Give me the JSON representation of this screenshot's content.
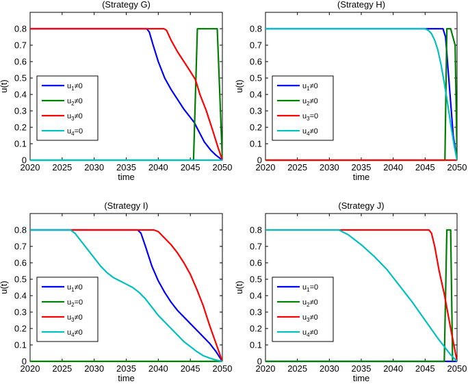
{
  "chart_data": [
    {
      "type": "line",
      "title": "(Strategy G)",
      "xlabel": "time",
      "ylabel": "u(t)",
      "xlim": [
        2020,
        2050
      ],
      "ylim": [
        0,
        0.9
      ],
      "xticks": [
        2020,
        2025,
        2030,
        2035,
        2040,
        2045,
        2050
      ],
      "yticks": [
        0,
        0.1,
        0.2,
        0.3,
        0.4,
        0.5,
        0.6,
        0.7,
        0.8
      ],
      "legend_position": "center-left",
      "series": [
        {
          "name": "u1≠0",
          "base": "u",
          "sub": "1",
          "rel": "≠0",
          "color": "#0000ff",
          "points": [
            [
              2020,
              0.8
            ],
            [
              2038.2,
              0.8
            ],
            [
              2038.6,
              0.78
            ],
            [
              2039.2,
              0.7
            ],
            [
              2040,
              0.6
            ],
            [
              2041,
              0.5
            ],
            [
              2042,
              0.43
            ],
            [
              2043,
              0.37
            ],
            [
              2044,
              0.31
            ],
            [
              2045,
              0.26
            ],
            [
              2045.6,
              0.23
            ],
            [
              2046.4,
              0.17
            ],
            [
              2047.2,
              0.11
            ],
            [
              2048.2,
              0.06
            ],
            [
              2049,
              0.03
            ],
            [
              2050,
              0
            ]
          ]
        },
        {
          "name": "u2≠0",
          "base": "u",
          "sub": "2",
          "rel": "≠0",
          "color": "#008000",
          "points": [
            [
              2020,
              0
            ],
            [
              2045.5,
              0
            ],
            [
              2046.1,
              0.8
            ],
            [
              2049.2,
              0.8
            ],
            [
              2050,
              0
            ]
          ]
        },
        {
          "name": "u3≠0",
          "base": "u",
          "sub": "3",
          "rel": "≠0",
          "color": "#ff0000",
          "points": [
            [
              2020,
              0.8
            ],
            [
              2040.9,
              0.8
            ],
            [
              2041.3,
              0.79
            ],
            [
              2042,
              0.73
            ],
            [
              2043,
              0.66
            ],
            [
              2044,
              0.6
            ],
            [
              2045,
              0.54
            ],
            [
              2045.8,
              0.49
            ],
            [
              2046.5,
              0.4
            ],
            [
              2047.5,
              0.3
            ],
            [
              2048.5,
              0.18
            ],
            [
              2049.3,
              0.08
            ],
            [
              2050,
              0
            ]
          ]
        },
        {
          "name": "u4=0",
          "base": "u",
          "sub": "4",
          "rel": "=0",
          "color": "#00bfbf",
          "points": [
            [
              2020,
              0
            ],
            [
              2050,
              0
            ]
          ]
        }
      ]
    },
    {
      "type": "line",
      "title": "(Strategy H)",
      "xlabel": "time",
      "ylabel": "u(t)",
      "xlim": [
        2020,
        2050
      ],
      "ylim": [
        0,
        0.9
      ],
      "xticks": [
        2020,
        2025,
        2030,
        2035,
        2040,
        2045,
        2050
      ],
      "yticks": [
        0,
        0.1,
        0.2,
        0.3,
        0.4,
        0.5,
        0.6,
        0.7,
        0.8
      ],
      "legend_position": "center-left",
      "series": [
        {
          "name": "u1≠0",
          "base": "u",
          "sub": "1",
          "rel": "≠0",
          "color": "#0000ff",
          "points": [
            [
              2020,
              0.8
            ],
            [
              2047.8,
              0.8
            ],
            [
              2048.2,
              0.75
            ],
            [
              2048.6,
              0.55
            ],
            [
              2049,
              0.35
            ],
            [
              2049.4,
              0.15
            ],
            [
              2050,
              0
            ]
          ]
        },
        {
          "name": "u2≠0",
          "base": "u",
          "sub": "2",
          "rel": "≠0",
          "color": "#008000",
          "points": [
            [
              2020,
              0
            ],
            [
              2048.1,
              0
            ],
            [
              2048.4,
              0.8
            ],
            [
              2049,
              0.8
            ],
            [
              2049.7,
              0.7
            ],
            [
              2050,
              0
            ]
          ]
        },
        {
          "name": "u3=0",
          "base": "u",
          "sub": "3",
          "rel": "=0",
          "color": "#ff0000",
          "points": [
            [
              2020,
              0
            ],
            [
              2050,
              0
            ]
          ]
        },
        {
          "name": "u4≠0",
          "base": "u",
          "sub": "4",
          "rel": "≠0",
          "color": "#00bfbf",
          "points": [
            [
              2020,
              0.8
            ],
            [
              2045,
              0.8
            ],
            [
              2045.5,
              0.79
            ],
            [
              2046,
              0.77
            ],
            [
              2046.5,
              0.73
            ],
            [
              2047,
              0.67
            ],
            [
              2047.5,
              0.58
            ],
            [
              2048,
              0.47
            ],
            [
              2048.5,
              0.35
            ],
            [
              2049,
              0.22
            ],
            [
              2049.5,
              0.1
            ],
            [
              2050,
              0
            ]
          ]
        }
      ]
    },
    {
      "type": "line",
      "title": "(Strategy I)",
      "xlabel": "time",
      "ylabel": "u(t)",
      "xlim": [
        2020,
        2050
      ],
      "ylim": [
        0,
        0.9
      ],
      "xticks": [
        2020,
        2025,
        2030,
        2035,
        2040,
        2045,
        2050
      ],
      "yticks": [
        0,
        0.1,
        0.2,
        0.3,
        0.4,
        0.5,
        0.6,
        0.7,
        0.8
      ],
      "legend_position": "center-left",
      "series": [
        {
          "name": "u1≠0",
          "base": "u",
          "sub": "1",
          "rel": "≠0",
          "color": "#0000ff",
          "points": [
            [
              2020,
              0.8
            ],
            [
              2036.8,
              0.8
            ],
            [
              2037.3,
              0.78
            ],
            [
              2038,
              0.7
            ],
            [
              2039,
              0.58
            ],
            [
              2040,
              0.49
            ],
            [
              2041,
              0.42
            ],
            [
              2042,
              0.36
            ],
            [
              2043,
              0.31
            ],
            [
              2044,
              0.27
            ],
            [
              2045,
              0.23
            ],
            [
              2046,
              0.19
            ],
            [
              2047,
              0.15
            ],
            [
              2048,
              0.11
            ],
            [
              2049,
              0.06
            ],
            [
              2050,
              0
            ]
          ]
        },
        {
          "name": "u2=0",
          "base": "u",
          "sub": "2",
          "rel": "=0",
          "color": "#008000",
          "points": [
            [
              2020,
              0
            ],
            [
              2050,
              0
            ]
          ]
        },
        {
          "name": "u3≠0",
          "base": "u",
          "sub": "3",
          "rel": "≠0",
          "color": "#ff0000",
          "points": [
            [
              2020,
              0.8
            ],
            [
              2039.3,
              0.8
            ],
            [
              2040,
              0.79
            ],
            [
              2041,
              0.75
            ],
            [
              2042,
              0.71
            ],
            [
              2043,
              0.66
            ],
            [
              2044,
              0.6
            ],
            [
              2045,
              0.53
            ],
            [
              2046,
              0.44
            ],
            [
              2047,
              0.34
            ],
            [
              2048,
              0.22
            ],
            [
              2049,
              0.11
            ],
            [
              2050,
              0
            ]
          ]
        },
        {
          "name": "u4≠0",
          "base": "u",
          "sub": "4",
          "rel": "≠0",
          "color": "#00bfbf",
          "points": [
            [
              2020,
              0.8
            ],
            [
              2026.3,
              0.8
            ],
            [
              2027,
              0.78
            ],
            [
              2028,
              0.73
            ],
            [
              2029,
              0.68
            ],
            [
              2030,
              0.63
            ],
            [
              2031,
              0.58
            ],
            [
              2032,
              0.54
            ],
            [
              2033,
              0.51
            ],
            [
              2034,
              0.49
            ],
            [
              2035,
              0.47
            ],
            [
              2036,
              0.45
            ],
            [
              2037,
              0.42
            ],
            [
              2038,
              0.38
            ],
            [
              2039,
              0.33
            ],
            [
              2040,
              0.28
            ],
            [
              2041,
              0.24
            ],
            [
              2042,
              0.2
            ],
            [
              2043,
              0.16
            ],
            [
              2044,
              0.12
            ],
            [
              2045,
              0.09
            ],
            [
              2046,
              0.06
            ],
            [
              2047,
              0.035
            ],
            [
              2048,
              0.02
            ],
            [
              2049,
              0.008
            ],
            [
              2050,
              0
            ]
          ]
        }
      ]
    },
    {
      "type": "line",
      "title": "(Strategy J)",
      "xlabel": "time",
      "ylabel": "u(t)",
      "xlim": [
        2020,
        2050
      ],
      "ylim": [
        0,
        0.9
      ],
      "xticks": [
        2020,
        2025,
        2030,
        2035,
        2040,
        2045,
        2050
      ],
      "yticks": [
        0,
        0.1,
        0.2,
        0.3,
        0.4,
        0.5,
        0.6,
        0.7,
        0.8
      ],
      "legend_position": "center-left",
      "series": [
        {
          "name": "u1=0",
          "base": "u",
          "sub": "1",
          "rel": "=0",
          "color": "#0000ff",
          "points": [
            [
              2020,
              0
            ],
            [
              2050,
              0
            ]
          ]
        },
        {
          "name": "u2≠0",
          "base": "u",
          "sub": "2",
          "rel": "≠0",
          "color": "#008000",
          "points": [
            [
              2020,
              0
            ],
            [
              2048,
              0
            ],
            [
              2048.4,
              0.8
            ],
            [
              2049,
              0.8
            ],
            [
              2049.3,
              0
            ]
          ]
        },
        {
          "name": "u3≠0",
          "base": "u",
          "sub": "3",
          "rel": "≠0",
          "color": "#ff0000",
          "points": [
            [
              2020,
              0.8
            ],
            [
              2045.6,
              0.8
            ],
            [
              2046,
              0.78
            ],
            [
              2046.5,
              0.7
            ],
            [
              2047.2,
              0.55
            ],
            [
              2048,
              0.41
            ],
            [
              2049,
              0.2
            ],
            [
              2050,
              0
            ]
          ]
        },
        {
          "name": "u4≠0",
          "base": "u",
          "sub": "4",
          "rel": "≠0",
          "color": "#00bfbf",
          "points": [
            [
              2020,
              0.8
            ],
            [
              2031.5,
              0.8
            ],
            [
              2033,
              0.77
            ],
            [
              2035,
              0.71
            ],
            [
              2037,
              0.64
            ],
            [
              2039,
              0.56
            ],
            [
              2041,
              0.46
            ],
            [
              2043,
              0.36
            ],
            [
              2045,
              0.25
            ],
            [
              2047,
              0.14
            ],
            [
              2049,
              0.04
            ],
            [
              2050,
              0
            ]
          ]
        }
      ]
    }
  ]
}
